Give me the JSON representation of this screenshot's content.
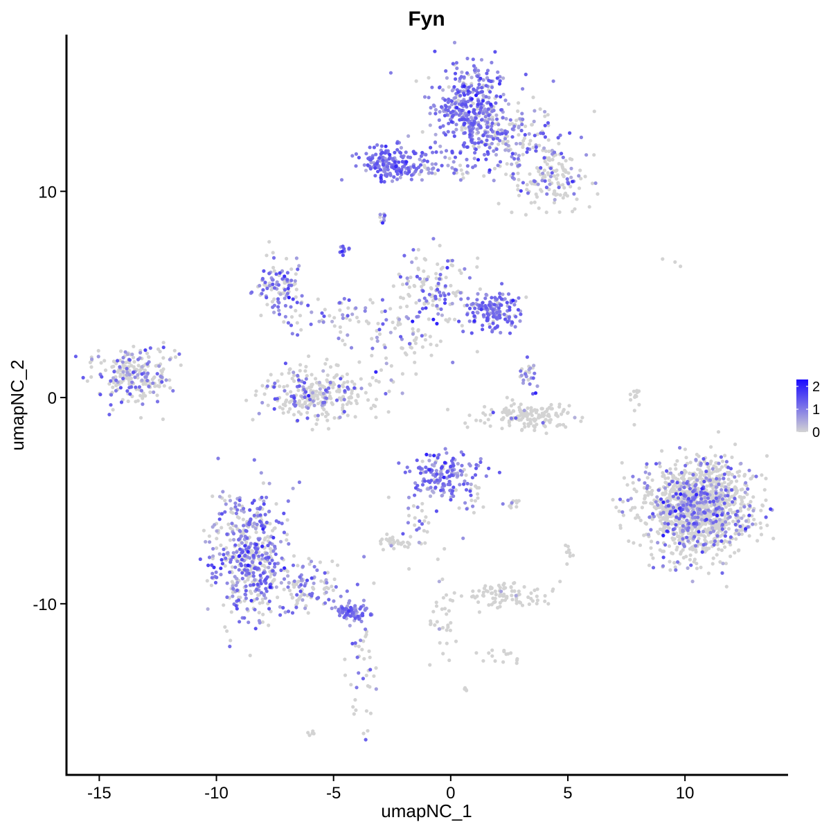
{
  "chart_data": {
    "type": "scatter",
    "title": "Fyn",
    "xlabel": "umapNC_1",
    "ylabel": "umapNC_2",
    "xlim": [
      -16.4,
      14.4
    ],
    "ylim": [
      -18.3,
      17.6
    ],
    "x_ticks": [
      -15,
      -10,
      -5,
      0,
      5,
      10
    ],
    "x_tick_labels": [
      "-15",
      "-10",
      "-5",
      "0",
      "5",
      "10"
    ],
    "y_ticks": [
      -10,
      0,
      10
    ],
    "y_tick_labels": [
      "-10",
      "0",
      "10"
    ],
    "grid": false,
    "legend": {
      "position": "right",
      "ticks": [
        0,
        1,
        2
      ],
      "labels": [
        "0",
        "1",
        "2"
      ],
      "range": [
        0,
        2.3
      ]
    },
    "color_scale": {
      "low": "#d3d3d3",
      "high": "#1a0aff"
    },
    "clusters": [
      {
        "cx": 0.8,
        "cy": 14.2,
        "sx": 0.8,
        "sy": 1.1,
        "n": 350,
        "expr": 0.9
      },
      {
        "cx": 2.4,
        "cy": 12.6,
        "sx": 1.2,
        "sy": 0.8,
        "n": 200,
        "expr": 0.5
      },
      {
        "cx": 4.2,
        "cy": 10.6,
        "sx": 1.0,
        "sy": 0.9,
        "n": 150,
        "expr": 0.3
      },
      {
        "cx": -2.4,
        "cy": 11.4,
        "sx": 0.7,
        "sy": 0.4,
        "n": 180,
        "expr": 1.0
      },
      {
        "cx": -0.4,
        "cy": 11.1,
        "sx": 1.0,
        "sy": 0.2,
        "n": 40,
        "expr": 0.7
      },
      {
        "cx": -2.9,
        "cy": 8.8,
        "sx": 0.15,
        "sy": 0.15,
        "n": 8,
        "expr": 0.5
      },
      {
        "cx": -4.5,
        "cy": 7.3,
        "sx": 0.12,
        "sy": 0.2,
        "n": 12,
        "expr": 1.6
      },
      {
        "cx": -7.3,
        "cy": 5.3,
        "sx": 0.5,
        "sy": 0.6,
        "n": 100,
        "expr": 0.6
      },
      {
        "cx": -5.2,
        "cy": 4.0,
        "sx": 1.2,
        "sy": 0.5,
        "n": 60,
        "expr": 0.5
      },
      {
        "cx": -0.8,
        "cy": 5.4,
        "sx": 0.7,
        "sy": 0.8,
        "n": 120,
        "expr": 0.3
      },
      {
        "cx": 1.8,
        "cy": 4.2,
        "sx": 0.7,
        "sy": 0.5,
        "n": 160,
        "expr": 0.9
      },
      {
        "cx": -1.6,
        "cy": 3.2,
        "sx": 1.0,
        "sy": 0.7,
        "n": 50,
        "expr": 0.3
      },
      {
        "cx": -3.2,
        "cy": 2.0,
        "sx": 1.4,
        "sy": 0.9,
        "n": 40,
        "expr": 0.15
      },
      {
        "cx": -5.7,
        "cy": 0.1,
        "sx": 1.2,
        "sy": 0.6,
        "n": 280,
        "expr": 0.25
      },
      {
        "cx": -13.6,
        "cy": 1.0,
        "sx": 0.8,
        "sy": 0.6,
        "n": 220,
        "expr": 0.35
      },
      {
        "cx": -12.0,
        "cy": 1.9,
        "sx": 0.4,
        "sy": 0.6,
        "n": 15,
        "expr": 0.35
      },
      {
        "cx": 3.3,
        "cy": 1.0,
        "sx": 0.2,
        "sy": 0.4,
        "n": 25,
        "expr": 0.6
      },
      {
        "cx": 3.3,
        "cy": -0.9,
        "sx": 1.0,
        "sy": 0.3,
        "n": 150,
        "expr": 0.03
      },
      {
        "cx": 7.9,
        "cy": -0.2,
        "sx": 0.1,
        "sy": 0.5,
        "n": 12,
        "expr": 0.0
      },
      {
        "cx": 9.6,
        "cy": 6.6,
        "sx": 0.2,
        "sy": 0.1,
        "n": 3,
        "expr": 0.0
      },
      {
        "cx": 10.6,
        "cy": -5.3,
        "sx": 1.15,
        "sy": 1.1,
        "n": 1300,
        "expr": 0.25
      },
      {
        "cx": -0.4,
        "cy": -3.7,
        "sx": 0.6,
        "sy": 0.6,
        "n": 150,
        "expr": 0.9
      },
      {
        "cx": 0.9,
        "cy": -4.7,
        "sx": 0.5,
        "sy": 0.7,
        "n": 30,
        "expr": 0.6
      },
      {
        "cx": -1.5,
        "cy": -5.8,
        "sx": 0.4,
        "sy": 0.8,
        "n": 30,
        "expr": 0.4
      },
      {
        "cx": -2.4,
        "cy": -7.1,
        "sx": 0.4,
        "sy": 0.2,
        "n": 30,
        "expr": 0.05
      },
      {
        "cx": 2.7,
        "cy": -5.1,
        "sx": 0.3,
        "sy": 0.1,
        "n": 10,
        "expr": 0.3
      },
      {
        "cx": 5.0,
        "cy": -7.5,
        "sx": 0.1,
        "sy": 0.3,
        "n": 8,
        "expr": 0.0
      },
      {
        "cx": -8.6,
        "cy": -7.6,
        "sx": 0.8,
        "sy": 1.5,
        "n": 500,
        "expr": 0.6
      },
      {
        "cx": -6.3,
        "cy": -9.0,
        "sx": 0.9,
        "sy": 0.6,
        "n": 120,
        "expr": 0.55
      },
      {
        "cx": -4.2,
        "cy": -10.4,
        "sx": 0.4,
        "sy": 0.2,
        "n": 70,
        "expr": 1.1
      },
      {
        "cx": -3.9,
        "cy": -13.5,
        "sx": 0.3,
        "sy": 1.4,
        "n": 40,
        "expr": 0.35
      },
      {
        "cx": -0.4,
        "cy": -10.6,
        "sx": 0.3,
        "sy": 1.3,
        "n": 35,
        "expr": 0.05
      },
      {
        "cx": 2.4,
        "cy": -9.6,
        "sx": 0.8,
        "sy": 0.35,
        "n": 90,
        "expr": 0.05
      },
      {
        "cx": 2.3,
        "cy": -12.5,
        "sx": 0.4,
        "sy": 0.25,
        "n": 15,
        "expr": 0.2
      },
      {
        "cx": 0.6,
        "cy": -14.2,
        "sx": 0.1,
        "sy": 0.1,
        "n": 4,
        "expr": 0.0
      },
      {
        "cx": -6.0,
        "cy": -16.3,
        "sx": 0.1,
        "sy": 0.1,
        "n": 5,
        "expr": 0.0
      }
    ]
  }
}
